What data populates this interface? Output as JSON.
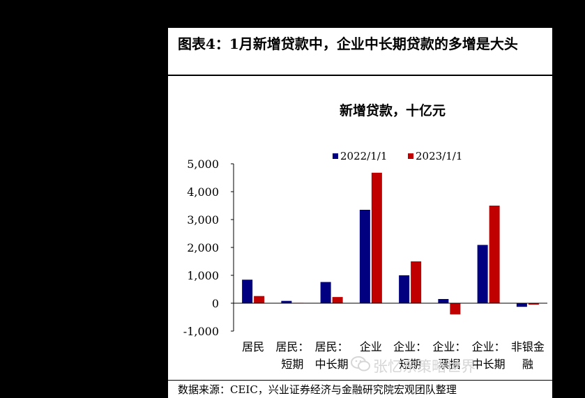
{
  "figure": {
    "title": "图表4：1月新增贷款中，企业中长期贷款的多增是大头",
    "source": "数据来源：CEIC，兴业证券经济与金融研究院宏观团队整理",
    "watermark": "张忆东策略世界",
    "watermark_icon": "wechat-icon"
  },
  "chart_data": {
    "type": "bar",
    "title": "新增贷款，十亿元",
    "categories": [
      [
        "居民"
      ],
      [
        "居民：",
        "短期"
      ],
      [
        "居民：",
        "中长期"
      ],
      [
        "企业"
      ],
      [
        "企业：",
        "短期"
      ],
      [
        "企业：",
        "票据"
      ],
      [
        "企业：",
        "中长期"
      ],
      [
        "非银金",
        "融"
      ]
    ],
    "series": [
      {
        "name": "2022/1/1",
        "color": "#000080",
        "values": [
          843,
          83,
          760,
          3350,
          1000,
          150,
          2090,
          -130
        ]
      },
      {
        "name": "2023/1/1",
        "color": "#c00000",
        "values": [
          257,
          14,
          222,
          4680,
          1500,
          -400,
          3500,
          -50
        ]
      }
    ],
    "ylim": [
      -1000,
      5000
    ],
    "yticks": [
      -1000,
      0,
      1000,
      2000,
      3000,
      4000,
      5000
    ],
    "ytick_labels": [
      "-1,000",
      "0",
      "1,000",
      "2,000",
      "3,000",
      "4,000",
      "5,000"
    ],
    "legend": "top-center",
    "grid": false,
    "xlabel": "",
    "ylabel": ""
  }
}
